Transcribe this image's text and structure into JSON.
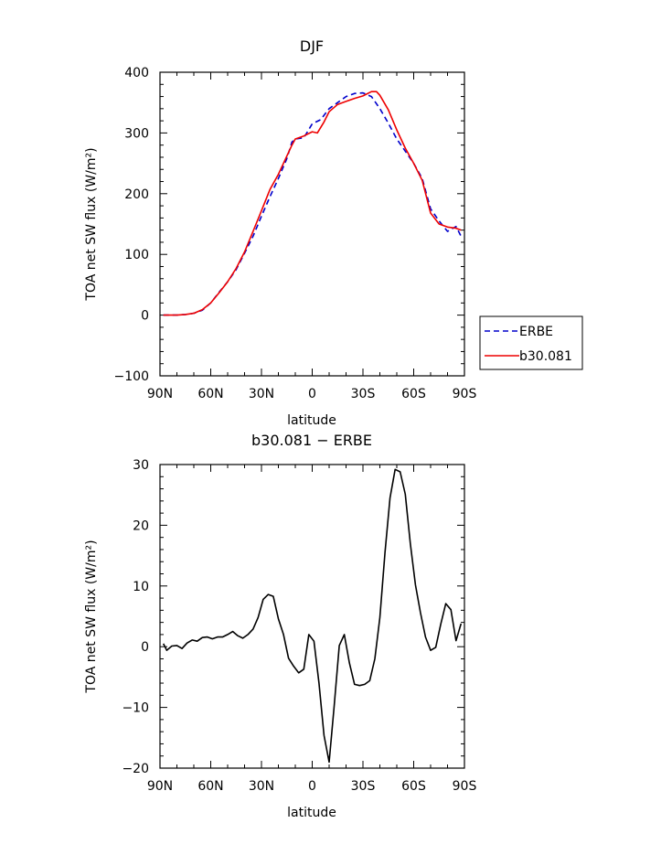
{
  "chart_data": [
    {
      "type": "line",
      "title": "DJF",
      "xlabel": "latitude",
      "ylabel": "TOA net SW flux (W/m²)",
      "xlim": [
        -90,
        90
      ],
      "ylim": [
        -100,
        400
      ],
      "x_ticks": [
        "90N",
        "60N",
        "30N",
        "0",
        "30S",
        "60S",
        "90S"
      ],
      "y_ticks": [
        "400",
        "300",
        "200",
        "100",
        "0",
        "−100"
      ],
      "legend": "right",
      "series": [
        {
          "name": "ERBE",
          "color": "#0000cc",
          "dash": true,
          "x": [
            -88,
            -85,
            -80,
            -75,
            -70,
            -65,
            -60,
            -55,
            -50,
            -45,
            -40,
            -35,
            -30,
            -25,
            -20,
            -15,
            -12,
            -10,
            -5,
            0,
            5,
            10,
            15,
            20,
            25,
            30,
            35,
            40,
            45,
            50,
            55,
            60,
            65,
            70,
            75,
            80,
            85,
            88
          ],
          "y": [
            0,
            0,
            0,
            1,
            3,
            8,
            20,
            38,
            55,
            75,
            102,
            130,
            163,
            195,
            225,
            258,
            285,
            290,
            292,
            315,
            322,
            340,
            350,
            360,
            365,
            366,
            360,
            340,
            316,
            290,
            270,
            250,
            225,
            175,
            155,
            138,
            146,
            130
          ]
        },
        {
          "name": "b30.081",
          "color": "#ee0000",
          "dash": false,
          "x": [
            -88,
            -85,
            -80,
            -75,
            -70,
            -65,
            -60,
            -55,
            -50,
            -45,
            -40,
            -35,
            -30,
            -25,
            -20,
            -15,
            -12,
            -10,
            -5,
            0,
            3,
            7,
            10,
            15,
            20,
            25,
            30,
            35,
            38,
            40,
            45,
            50,
            55,
            60,
            65,
            70,
            75,
            80,
            85,
            88
          ],
          "y": [
            0,
            0,
            0,
            1,
            3,
            9,
            20,
            37,
            55,
            77,
            104,
            138,
            172,
            207,
            232,
            262,
            280,
            290,
            295,
            302,
            300,
            318,
            335,
            347,
            352,
            357,
            361,
            368,
            368,
            362,
            338,
            305,
            275,
            250,
            222,
            168,
            150,
            145,
            143,
            140
          ]
        }
      ]
    },
    {
      "type": "line",
      "title": "b30.081 − ERBE",
      "xlabel": "latitude",
      "ylabel": "TOA net SW flux (W/m²)",
      "xlim": [
        -90,
        90
      ],
      "ylim": [
        -20,
        30
      ],
      "x_ticks": [
        "90N",
        "60N",
        "30N",
        "0",
        "30S",
        "60S",
        "90S"
      ],
      "y_ticks": [
        "30",
        "20",
        "10",
        "0",
        "−10",
        "−20"
      ],
      "series": [
        {
          "color": "#000000",
          "dash": false,
          "x": [
            -88,
            -86,
            -83,
            -80,
            -77,
            -74,
            -71,
            -68,
            -65,
            -62,
            -59,
            -56,
            -53,
            -50,
            -47,
            -44,
            -41,
            -38,
            -35,
            -32,
            -29,
            -26,
            -23,
            -20,
            -17,
            -14,
            -11,
            -8,
            -5,
            -2,
            1,
            4,
            7,
            10,
            13,
            16,
            19,
            22,
            25,
            28,
            31,
            34,
            37,
            40,
            43,
            46,
            49,
            52,
            55,
            58,
            61,
            64,
            67,
            70,
            73,
            76,
            79,
            82,
            85,
            88
          ],
          "y": [
            0.5,
            -0.6,
            0.1,
            0.2,
            -0.3,
            0.6,
            1.1,
            0.9,
            1.5,
            1.6,
            1.3,
            1.6,
            1.6,
            2.0,
            2.5,
            1.8,
            1.4,
            2.0,
            2.9,
            4.8,
            7.8,
            8.6,
            8.3,
            4.6,
            2.0,
            -1.9,
            -3.2,
            -4.3,
            -3.7,
            2.0,
            0.9,
            -6.0,
            -14.6,
            -19.0,
            -9.8,
            0.2,
            2.0,
            -2.7,
            -6.2,
            -6.4,
            -6.2,
            -5.6,
            -2.0,
            4.8,
            15.5,
            24.5,
            29.2,
            28.8,
            25.1,
            17.0,
            10.2,
            5.6,
            1.6,
            -0.6,
            -0.1,
            3.7,
            7.1,
            6.1,
            1.0,
            3.8
          ]
        }
      ]
    }
  ]
}
